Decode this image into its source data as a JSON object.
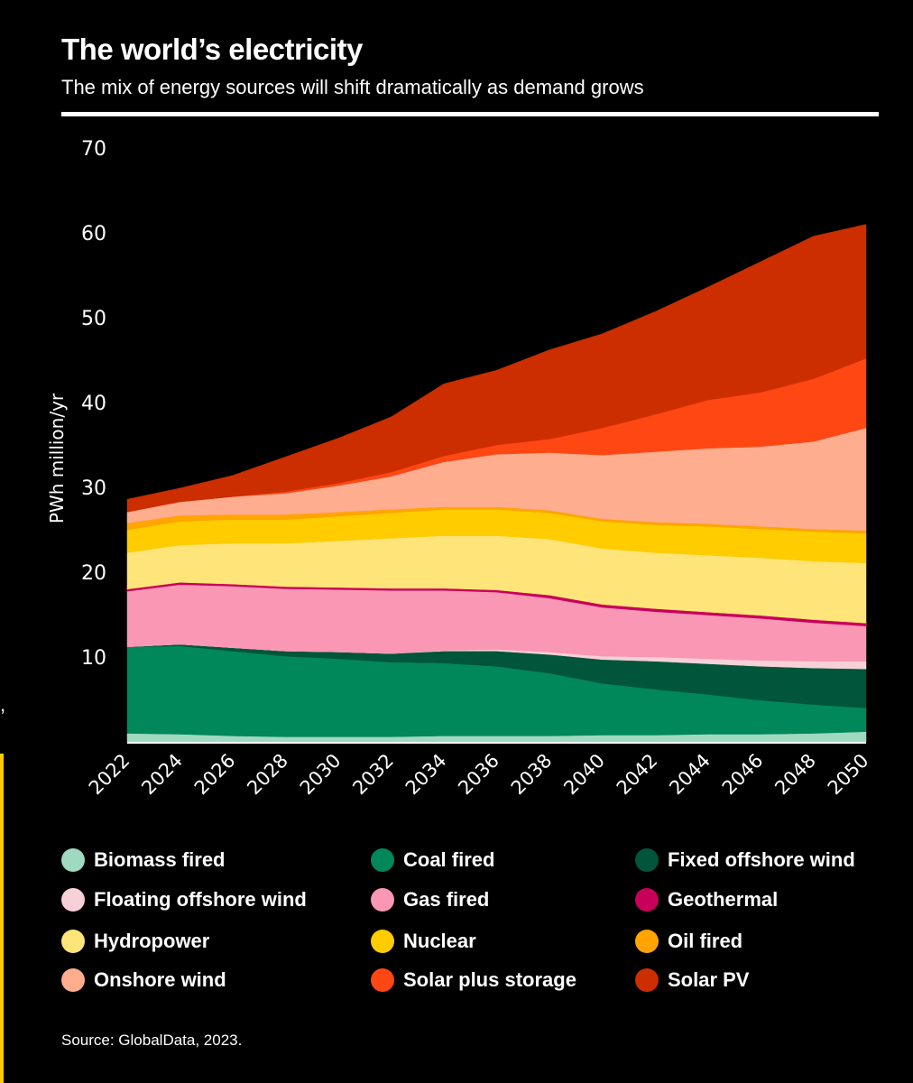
{
  "header": {
    "title": "The world’s electricity",
    "subtitle": "The mix of energy sources will shift dramatically as demand grows"
  },
  "source": "Source: GlobalData, 2023.",
  "edge_mark": ",",
  "chart_data": {
    "type": "area",
    "stacked": true,
    "title": "The world’s electricity",
    "subtitle": "The mix of energy sources will shift dramatically as demand grows",
    "xlabel": "",
    "ylabel": "PWh million/yr",
    "ylim": [
      0,
      70
    ],
    "yticks": [
      10,
      20,
      30,
      40,
      50,
      60,
      70
    ],
    "grid": false,
    "legend_position": "bottom",
    "x": [
      "2022",
      "2024",
      "2026",
      "2028",
      "2030",
      "2032",
      "2034",
      "2036",
      "2038",
      "2040",
      "2042",
      "2044",
      "2046",
      "2048",
      "2050"
    ],
    "series": [
      {
        "name": "Biomass fired",
        "color": "#9fd9c0",
        "values": [
          1.0,
          0.9,
          0.7,
          0.6,
          0.6,
          0.6,
          0.7,
          0.7,
          0.7,
          0.8,
          0.8,
          0.9,
          0.9,
          1.0,
          1.2
        ]
      },
      {
        "name": "Coal fired",
        "color": "#00875a",
        "values": [
          10.2,
          10.4,
          10.0,
          9.5,
          9.2,
          8.8,
          8.6,
          8.2,
          7.4,
          6.1,
          5.4,
          4.7,
          4.0,
          3.4,
          2.8
        ]
      },
      {
        "name": "Fixed offshore wind",
        "color": "#00553a",
        "values": [
          0.0,
          0.2,
          0.4,
          0.6,
          0.8,
          1.0,
          1.4,
          1.8,
          2.2,
          2.8,
          3.3,
          3.6,
          4.0,
          4.3,
          4.6
        ]
      },
      {
        "name": "Floating offshore wind",
        "color": "#f7d0d8",
        "values": [
          0.0,
          0.0,
          0.0,
          0.0,
          0.0,
          0.0,
          0.1,
          0.2,
          0.3,
          0.4,
          0.5,
          0.6,
          0.7,
          0.8,
          0.9
        ]
      },
      {
        "name": "Gas fired",
        "color": "#f997b4",
        "values": [
          6.6,
          7.1,
          7.3,
          7.4,
          7.4,
          7.5,
          7.1,
          6.8,
          6.4,
          5.8,
          5.4,
          5.2,
          5.0,
          4.6,
          4.2
        ]
      },
      {
        "name": "Geothermal",
        "color": "#c8005a",
        "values": [
          0.2,
          0.2,
          0.2,
          0.2,
          0.2,
          0.2,
          0.2,
          0.2,
          0.3,
          0.3,
          0.3,
          0.3,
          0.3,
          0.3,
          0.3
        ]
      },
      {
        "name": "Hydropower",
        "color": "#ffe47a",
        "values": [
          4.3,
          4.4,
          4.8,
          5.1,
          5.5,
          5.9,
          6.2,
          6.4,
          6.6,
          6.6,
          6.6,
          6.7,
          6.8,
          6.9,
          7.1
        ]
      },
      {
        "name": "Nuclear",
        "color": "#ffcc00",
        "values": [
          2.7,
          2.8,
          2.8,
          2.8,
          2.9,
          3.0,
          3.1,
          3.1,
          3.1,
          3.2,
          3.3,
          3.4,
          3.4,
          3.5,
          3.5
        ]
      },
      {
        "name": "Oil fired",
        "color": "#ffa400",
        "values": [
          0.8,
          0.7,
          0.6,
          0.6,
          0.5,
          0.4,
          0.3,
          0.3,
          0.3,
          0.3,
          0.3,
          0.3,
          0.3,
          0.3,
          0.3
        ]
      },
      {
        "name": "Onshore wind",
        "color": "#ffad8f",
        "values": [
          1.3,
          1.6,
          2.1,
          2.5,
          3.1,
          3.9,
          5.3,
          6.2,
          6.8,
          7.5,
          8.3,
          8.9,
          9.4,
          10.3,
          12.1
        ]
      },
      {
        "name": "Solar plus storage",
        "color": "#ff4714",
        "values": [
          0.0,
          0.0,
          0.0,
          0.2,
          0.3,
          0.5,
          0.7,
          1.1,
          1.6,
          3.2,
          4.4,
          5.7,
          6.4,
          7.4,
          8.2
        ]
      },
      {
        "name": "Solar PV",
        "color": "#cc2e00",
        "values": [
          1.5,
          1.6,
          2.5,
          4.1,
          5.3,
          6.5,
          8.5,
          8.8,
          10.5,
          11.1,
          12.1,
          13.3,
          15.4,
          16.8,
          15.8
        ]
      }
    ],
    "legend_order": [
      "Biomass fired",
      "Coal fired",
      "Fixed offshore wind",
      "Floating offshore wind",
      "Gas fired",
      "Geothermal",
      "Hydropower",
      "Nuclear",
      "Oil fired",
      "Onshore wind",
      "Solar plus storage",
      "Solar PV"
    ]
  }
}
